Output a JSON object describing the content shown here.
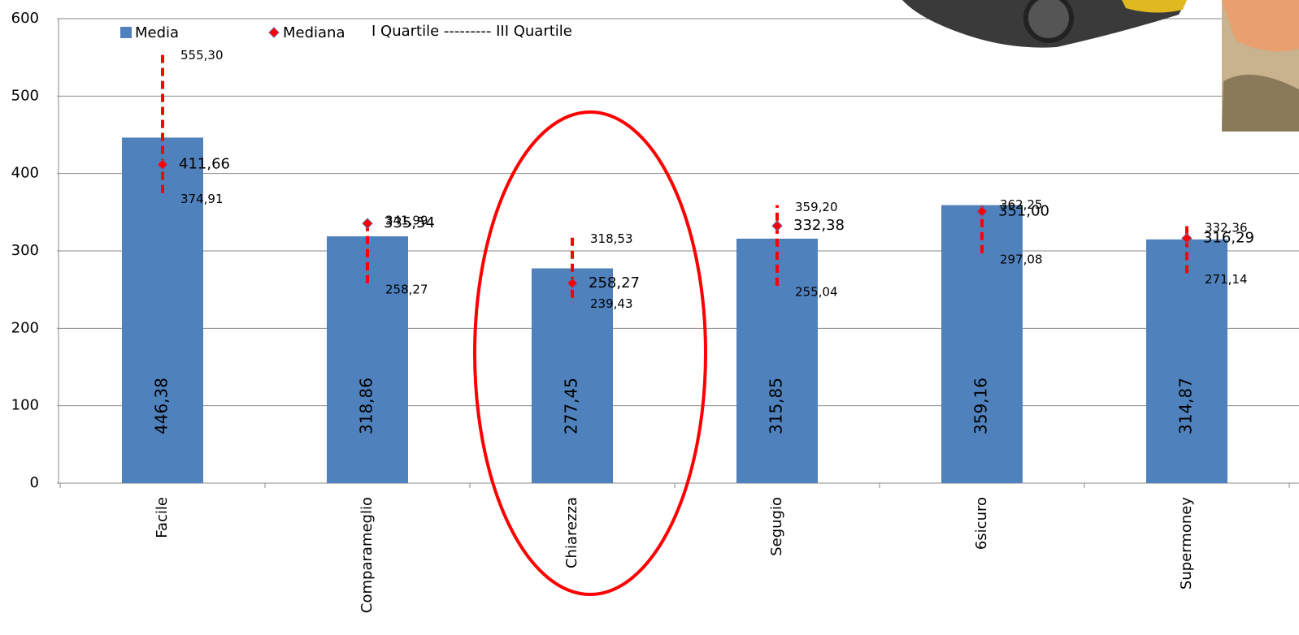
{
  "chart_data": {
    "type": "bar",
    "categories": [
      "Facile",
      "Comparameglio",
      "Chiarezza",
      "Segugio",
      "6sicuro",
      "Supermoney"
    ],
    "series": [
      {
        "name": "Media",
        "color": "#4f81bd",
        "values": [
          446.38,
          318.86,
          277.45,
          315.85,
          359.16,
          314.87
        ],
        "value_labels": [
          "446,38",
          "318,86",
          "277,45",
          "315,85",
          "359,16",
          "314,87"
        ]
      },
      {
        "name": "Mediana",
        "color": "#ff0000",
        "values": [
          411.66,
          335.54,
          258.27,
          332.38,
          351.0,
          316.29
        ],
        "value_labels": [
          "411,66",
          "335,54",
          "258,27",
          "332,38",
          "351,00",
          "316,29"
        ]
      }
    ],
    "quartiles": {
      "name": "I Quartile --------- III Quartile",
      "color": "#ff0000",
      "low": [
        374.91,
        258.27,
        239.43,
        255.04,
        297.08,
        271.14
      ],
      "low_labels": [
        "374,91",
        "258,27",
        "239,43",
        "255,04",
        "297,08",
        "271,14"
      ],
      "high": [
        555.3,
        341.99,
        318.53,
        359.2,
        362.25,
        332.36
      ],
      "high_labels": [
        "555,30",
        "341,99",
        "318,53",
        "359,20",
        "362,25",
        "332,36"
      ]
    },
    "ylim": [
      0,
      600
    ],
    "yticks": [
      0,
      100,
      200,
      300,
      400,
      500,
      600
    ],
    "grid": true
  }
}
